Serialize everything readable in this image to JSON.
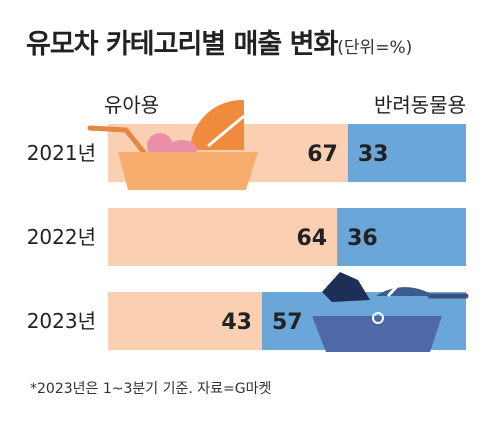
{
  "title": "유모차 카테고리별 매출 변화",
  "unit": "(단위=%)",
  "footnote": "*2023년은 1~3분기 기준. 자료=G마켓",
  "colors": {
    "baby": "#fbd0b2",
    "pet": "#6aa6d8",
    "text": "#222222"
  },
  "chart_data": {
    "type": "bar",
    "orientation": "horizontal",
    "stacked": true,
    "categories": [
      "2021년",
      "2022년",
      "2023년"
    ],
    "series": [
      {
        "name": "유아용",
        "values": [
          67,
          64,
          43
        ]
      },
      {
        "name": "반려동물용",
        "values": [
          33,
          36,
          57
        ]
      }
    ],
    "legend": "top",
    "icons": [
      "baby-stroller-icon",
      "pet-stroller-icon"
    ]
  }
}
